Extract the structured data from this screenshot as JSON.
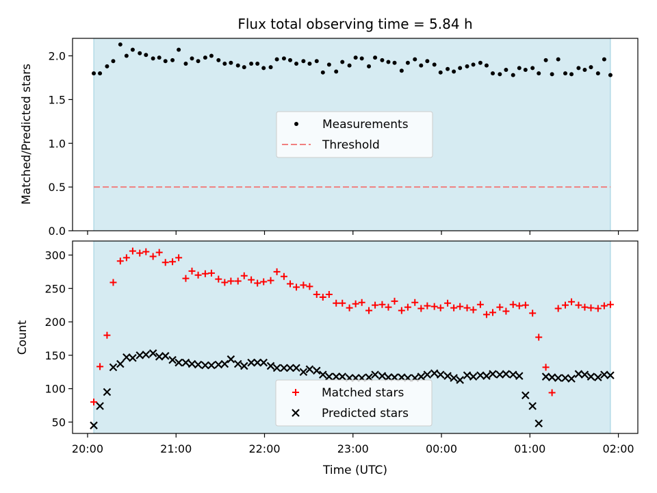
{
  "chart_data": {
    "type": "scatter",
    "title": "Flux total observing time = 5.84 h",
    "xlabel": "Time (UTC)",
    "x_tick_labels": [
      "20:00",
      "21:00",
      "22:00",
      "23:00",
      "00:00",
      "01:00",
      "02:00"
    ],
    "x_tick_hours": [
      20,
      21,
      22,
      23,
      24,
      25,
      26
    ],
    "xlim_hours": [
      19.83,
      26.22
    ],
    "observing_window_hours": [
      20.07,
      25.91
    ],
    "x_hours": [
      20.07,
      20.14,
      20.22,
      20.29,
      20.37,
      20.44,
      20.51,
      20.59,
      20.66,
      20.74,
      20.81,
      20.88,
      20.96,
      21.03,
      21.11,
      21.18,
      21.25,
      21.33,
      21.4,
      21.48,
      21.55,
      21.62,
      21.7,
      21.77,
      21.85,
      21.92,
      21.99,
      22.07,
      22.14,
      22.22,
      22.29,
      22.36,
      22.44,
      22.51,
      22.59,
      22.66,
      22.73,
      22.81,
      22.88,
      22.96,
      23.03,
      23.1,
      23.18,
      23.25,
      23.33,
      23.4,
      23.47,
      23.55,
      23.62,
      23.7,
      23.77,
      23.84,
      23.92,
      23.99,
      24.07,
      24.14,
      24.21,
      24.29,
      24.36,
      24.44,
      24.51,
      24.58,
      24.66,
      24.73,
      24.81,
      24.88,
      24.95,
      25.03,
      25.1,
      25.18,
      25.25,
      25.32,
      25.4,
      25.47,
      25.55,
      25.62,
      25.69,
      25.77,
      25.84,
      25.91
    ],
    "panels": [
      {
        "ylabel": "Matched/Predicted stars",
        "ylim": [
          0.0,
          2.2
        ],
        "y_ticks": [
          "0.0",
          "0.5",
          "1.0",
          "1.5",
          "2.0"
        ],
        "threshold": 0.5,
        "legend_location": "center",
        "series": [
          {
            "name": "Measurements",
            "marker": "dot",
            "color": "#000000",
            "values": [
              1.8,
              1.8,
              1.88,
              1.94,
              2.13,
              2.0,
              2.07,
              2.03,
              2.01,
              1.97,
              1.98,
              1.94,
              1.95,
              2.07,
              1.91,
              1.97,
              1.94,
              1.98,
              2.0,
              1.95,
              1.91,
              1.92,
              1.89,
              1.87,
              1.91,
              1.91,
              1.86,
              1.87,
              1.96,
              1.97,
              1.95,
              1.91,
              1.94,
              1.91,
              1.94,
              1.81,
              1.9,
              1.82,
              1.93,
              1.89,
              1.98,
              1.97,
              1.88,
              1.98,
              1.95,
              1.93,
              1.92,
              1.83,
              1.92,
              1.96,
              1.89,
              1.94,
              1.9,
              1.81,
              1.85,
              1.82,
              1.86,
              1.88,
              1.9,
              1.92,
              1.89,
              1.8,
              1.79,
              1.84,
              1.78,
              1.86,
              1.84,
              1.86,
              1.8,
              1.95,
              1.79,
              1.96,
              1.8,
              1.79,
              1.86,
              1.84,
              1.87,
              1.8,
              1.96,
              1.78
            ]
          },
          {
            "name": "Threshold",
            "marker": "dashed-line",
            "color": "#f07f7f"
          }
        ]
      },
      {
        "ylabel": "Count",
        "ylim": [
          33,
          321
        ],
        "y_ticks": [
          "50",
          "100",
          "150",
          "200",
          "250",
          "300"
        ],
        "legend_location": "lower center",
        "series": [
          {
            "name": "Matched stars",
            "marker": "plus",
            "color": "#ff0000",
            "values": [
              80,
              133,
              180,
              259,
              291,
              296,
              306,
              303,
              305,
              298,
              304,
              289,
              290,
              296,
              265,
              276,
              270,
              272,
              273,
              264,
              259,
              261,
              261,
              269,
              263,
              258,
              260,
              262,
              275,
              268,
              257,
              252,
              255,
              253,
              241,
              237,
              241,
              228,
              228,
              221,
              227,
              229,
              217,
              225,
              226,
              222,
              231,
              217,
              222,
              229,
              220,
              224,
              223,
              221,
              228,
              221,
              223,
              221,
              218,
              226,
              211,
              214,
              222,
              216,
              226,
              224,
              225,
              213,
              177,
              132,
              94,
              220,
              225,
              230,
              225,
              222,
              221,
              220,
              224,
              226
            ]
          },
          {
            "name": "Predicted stars",
            "marker": "x",
            "color": "#000000",
            "values": [
              45,
              74,
              95,
              132,
              137,
              147,
              146,
              150,
              151,
              153,
              148,
              149,
              143,
              139,
              139,
              137,
              136,
              135,
              135,
              136,
              137,
              144,
              137,
              134,
              139,
              139,
              139,
              134,
              131,
              131,
              131,
              131,
              125,
              129,
              127,
              121,
              118,
              118,
              118,
              116,
              116,
              116,
              117,
              121,
              119,
              117,
              117,
              117,
              116,
              116,
              118,
              121,
              123,
              121,
              119,
              116,
              113,
              120,
              118,
              120,
              119,
              122,
              121,
              122,
              121,
              119,
              90,
              74,
              48,
              118,
              117,
              116,
              116,
              115,
              122,
              121,
              118,
              117,
              121,
              120
            ]
          }
        ]
      }
    ]
  }
}
